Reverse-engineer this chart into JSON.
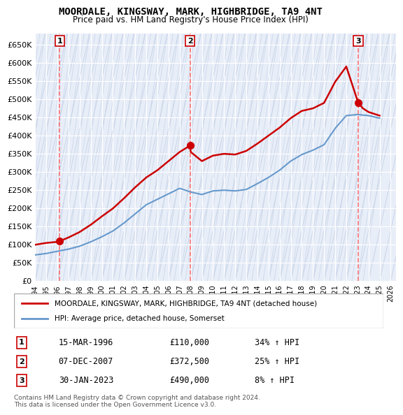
{
  "title": "MOORDALE, KINGSWAY, MARK, HIGHBRIDGE, TA9 4NT",
  "subtitle": "Price paid vs. HM Land Registry's House Price Index (HPI)",
  "xlim": [
    1994.0,
    2026.5
  ],
  "ylim": [
    0,
    680000
  ],
  "yticks": [
    0,
    50000,
    100000,
    150000,
    200000,
    250000,
    300000,
    350000,
    400000,
    450000,
    500000,
    550000,
    600000,
    650000
  ],
  "ytick_labels": [
    "£0",
    "£50K",
    "£100K",
    "£150K",
    "£200K",
    "£250K",
    "£300K",
    "£350K",
    "£400K",
    "£450K",
    "£500K",
    "£550K",
    "£600K",
    "£650K"
  ],
  "xticks": [
    1994,
    1995,
    1996,
    1997,
    1998,
    1999,
    2000,
    2001,
    2002,
    2003,
    2004,
    2005,
    2006,
    2007,
    2008,
    2009,
    2010,
    2011,
    2012,
    2013,
    2014,
    2015,
    2016,
    2017,
    2018,
    2019,
    2020,
    2021,
    2022,
    2023,
    2024,
    2025,
    2026
  ],
  "sale_dates": [
    1996.21,
    2007.93,
    2023.08
  ],
  "sale_prices": [
    110000,
    372500,
    490000
  ],
  "marker_labels": [
    "1",
    "2",
    "3"
  ],
  "sale_label_info": [
    {
      "num": "1",
      "date": "15-MAR-1996",
      "price": "£110,000",
      "pct": "34%"
    },
    {
      "num": "2",
      "date": "07-DEC-2007",
      "price": "£372,500",
      "pct": "25%"
    },
    {
      "num": "3",
      "date": "30-JAN-2023",
      "price": "£490,000",
      "pct": "8%"
    }
  ],
  "legend_label_red": "MOORDALE, KINGSWAY, MARK, HIGHBRIDGE, TA9 4NT (detached house)",
  "legend_label_blue": "HPI: Average price, detached house, Somerset",
  "footer": "Contains HM Land Registry data © Crown copyright and database right 2024.\nThis data is licensed under the Open Government Licence v3.0.",
  "bg_color": "#e8eef8",
  "hatch_color": "#c8d4e8",
  "grid_color": "#ffffff",
  "red_color": "#cc0000",
  "blue_color": "#6699cc",
  "dashed_color": "#ff6666"
}
